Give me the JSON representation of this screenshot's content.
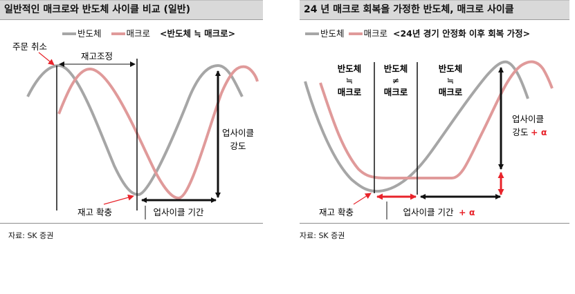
{
  "chart_data": [
    {
      "type": "line",
      "title": "일반적인 매크로와 반도체 사이클 비교 (일반)",
      "legend": [
        "반도체",
        "매크로"
      ],
      "legend_note": "<반도체 ≒ 매크로>",
      "series": [
        {
          "name": "반도체",
          "color": "#a6a6a6"
        },
        {
          "name": "매크로",
          "color": "#e09a9a"
        }
      ],
      "annotations": {
        "order_cancel": "주문 취소",
        "inventory_adjust": "재고조정",
        "restock": "재고 확충",
        "upcycle_strength": [
          "업사이클",
          "강도"
        ],
        "upcycle_period": "업사이클 기간"
      },
      "source": "자료: SK 증권"
    },
    {
      "type": "line",
      "title": "24 년 매크로 회복을 가정한 반도체, 매크로 사이클",
      "legend": [
        "반도체",
        "매크로"
      ],
      "legend_note": "<24년 경기 안정화 이후 회복 가정>",
      "series": [
        {
          "name": "반도체",
          "color": "#a6a6a6"
        },
        {
          "name": "매크로",
          "color": "#e09a9a"
        }
      ],
      "zones": [
        [
          "반도체",
          "≒",
          "매크로"
        ],
        [
          "반도체",
          "≠",
          "매크로"
        ],
        [
          "반도체",
          "≒",
          "매크로"
        ]
      ],
      "annotations": {
        "restock": "재고 확충",
        "upcycle_period": "업사이클 기간",
        "upcycle_strength": [
          "업사이클",
          "강도"
        ],
        "alpha": "+ α"
      },
      "source": "자료: SK 증권"
    }
  ]
}
